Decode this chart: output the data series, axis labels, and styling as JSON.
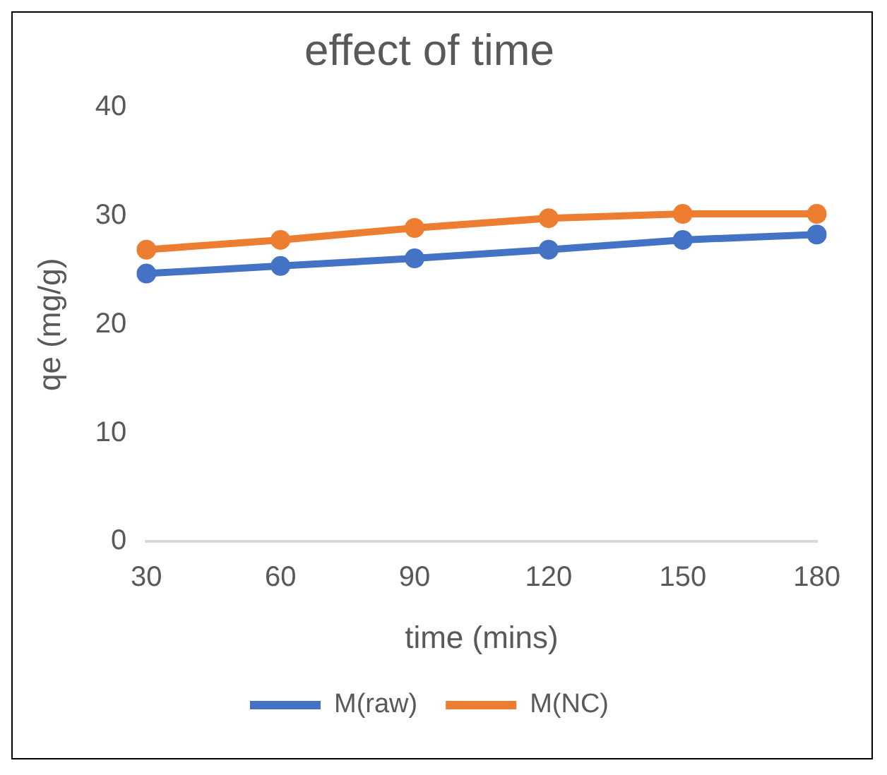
{
  "chart_data": {
    "type": "line",
    "title": "effect of time",
    "xlabel": "time (mins)",
    "ylabel": "qe (mg/g)",
    "categories": [
      "30",
      "60",
      "90",
      "120",
      "150",
      "180"
    ],
    "series": [
      {
        "name": "M(raw)",
        "color": "#4472c4",
        "values": [
          24.7,
          25.4,
          26.1,
          26.9,
          27.8,
          28.3
        ]
      },
      {
        "name": "M(NC)",
        "color": "#ed7d31",
        "values": [
          26.9,
          27.8,
          28.9,
          29.8,
          30.2,
          30.2
        ]
      }
    ],
    "ylim": [
      0,
      40
    ],
    "yticks": [
      0,
      10,
      20,
      30,
      40
    ],
    "grid": false,
    "legend": "bottom",
    "marker": "circle",
    "line_style": "solid"
  }
}
